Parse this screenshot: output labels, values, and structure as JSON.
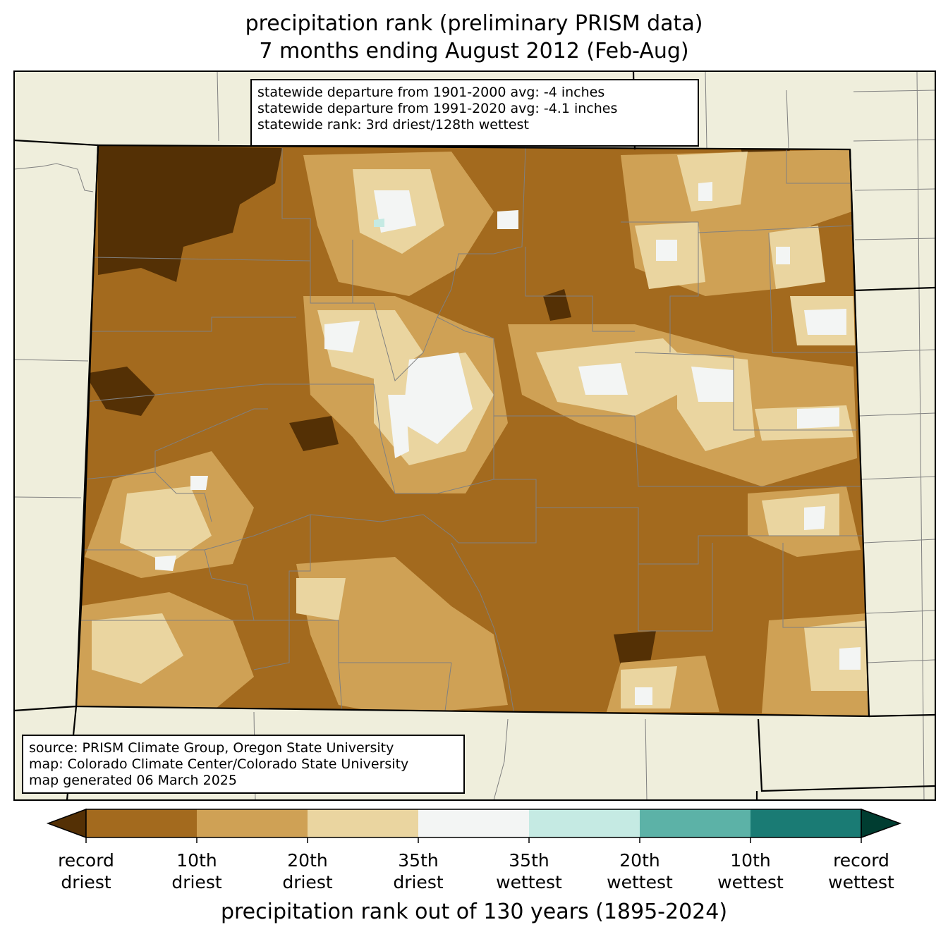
{
  "title": {
    "line1": "precipitation rank (preliminary PRISM data)",
    "line2": "7 months ending August 2012 (Feb-Aug)"
  },
  "stats_box": {
    "lines": [
      "statewide departure from 1901-2000 avg: -4 inches",
      "statewide departure from 1991-2020 avg: -4.1 inches",
      "statewide rank: 3rd driest/128th wettest"
    ]
  },
  "source_box": {
    "lines": [
      "source: PRISM Climate Group, Oregon State University",
      "map: Colorado Climate Center/Colorado State University",
      "map generated 06 March 2025"
    ]
  },
  "colorbar": {
    "title": "precipitation rank out of 130 years (1895-2024)",
    "colors": {
      "below_min": "#543005",
      "record_driest_to_10th": "#a36a1e",
      "10th_to_20th_driest": "#cfa155",
      "20th_to_35th_driest": "#ead5a0",
      "35th_driest_to_35th_wettest": "#f3f5f4",
      "35th_to_20th_wettest": "#c5eae3",
      "20th_to_10th_wettest": "#5cb2a7",
      "10th_to_record_wettest": "#1a7b74",
      "above_max": "#003d31"
    },
    "ticks": [
      {
        "line1": "record",
        "line2": "driest"
      },
      {
        "line1": "10th",
        "line2": "driest"
      },
      {
        "line1": "20th",
        "line2": "driest"
      },
      {
        "line1": "35th",
        "line2": "driest"
      },
      {
        "line1": "35th",
        "line2": "wettest"
      },
      {
        "line1": "20th",
        "line2": "wettest"
      },
      {
        "line1": "10th",
        "line2": "wettest"
      },
      {
        "line1": "record",
        "line2": "wettest"
      }
    ]
  },
  "map_colors": {
    "land_outside": "#efeedc",
    "border": "#000000",
    "county_lines": "#808080"
  }
}
